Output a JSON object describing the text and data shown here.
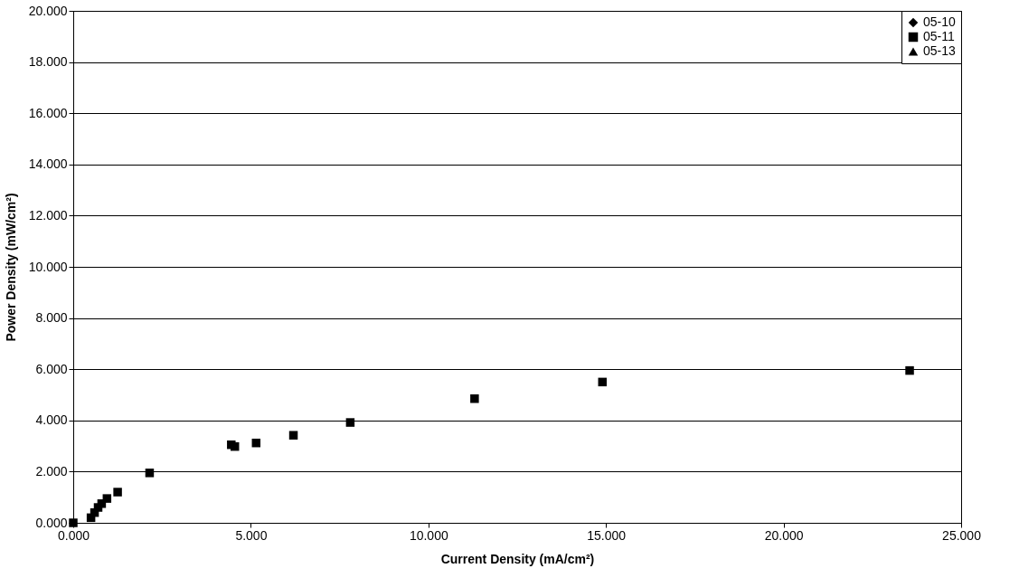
{
  "chart_data": {
    "type": "scatter",
    "xlabel": "Current Density (mA/cm²)",
    "ylabel": "Power Density (mW/cm²)",
    "xlim": [
      0,
      25
    ],
    "ylim": [
      0,
      20
    ],
    "xticks": [
      {
        "value": 0,
        "label": "0.000"
      },
      {
        "value": 5,
        "label": "5.000"
      },
      {
        "value": 10,
        "label": "10.000"
      },
      {
        "value": 15,
        "label": "15.000"
      },
      {
        "value": 20,
        "label": "20.000"
      },
      {
        "value": 25,
        "label": "25.000"
      }
    ],
    "yticks": [
      {
        "value": 0,
        "label": "0.000"
      },
      {
        "value": 2,
        "label": "2.000"
      },
      {
        "value": 4,
        "label": "4.000"
      },
      {
        "value": 6,
        "label": "6.000"
      },
      {
        "value": 8,
        "label": "8.000"
      },
      {
        "value": 10,
        "label": "10.000"
      },
      {
        "value": 12,
        "label": "12.000"
      },
      {
        "value": 14,
        "label": "14.000"
      },
      {
        "value": 16,
        "label": "16.000"
      },
      {
        "value": 18,
        "label": "18.000"
      },
      {
        "value": 20,
        "label": "20.000"
      }
    ],
    "grid": "y",
    "legend": "top right",
    "series": [
      {
        "name": "05-10",
        "color": "#000000",
        "marker": "diamond"
      },
      {
        "name": "05-11",
        "color": "#000000",
        "marker": "square",
        "x": [
          0,
          0.5,
          0.6,
          0.7,
          0.8,
          0.95,
          1.25,
          2.15,
          4.45,
          4.55,
          5.15,
          6.2,
          7.8,
          11.3,
          14.9,
          23.55
        ],
        "values": [
          0,
          0.2,
          0.4,
          0.6,
          0.75,
          0.95,
          1.2,
          1.95,
          3.05,
          2.98,
          3.12,
          3.42,
          3.92,
          4.85,
          5.5,
          5.95
        ]
      },
      {
        "name": "05-13",
        "color": "#000000",
        "marker": "triangle"
      }
    ]
  }
}
